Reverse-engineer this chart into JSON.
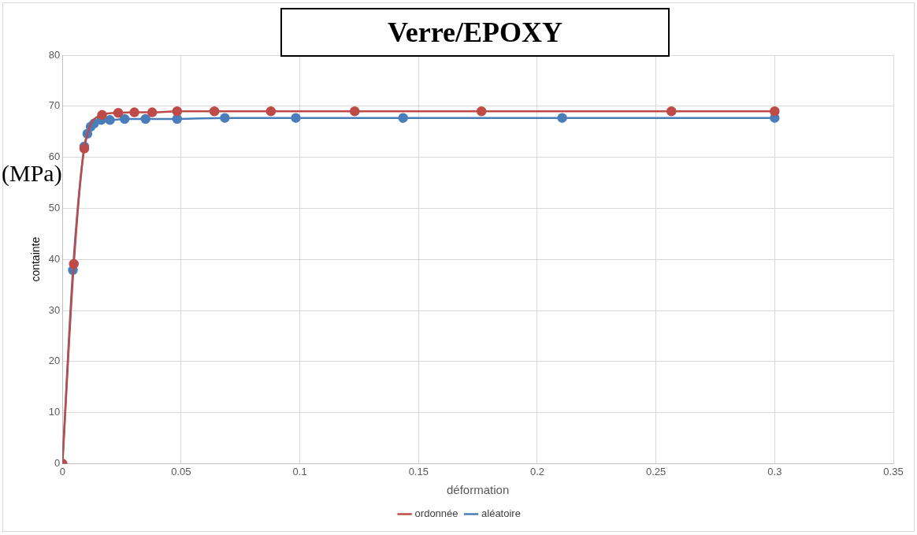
{
  "chart_data": {
    "type": "line",
    "title": "Verre/EPOXY",
    "xlabel": "déformation",
    "ylabel": "containte",
    "annotations": [
      "(MPa)"
    ],
    "xlim": [
      0,
      0.35
    ],
    "xticks": [
      0,
      0.05,
      0.1,
      0.15,
      0.2,
      0.25,
      0.3,
      0.35
    ],
    "ylim": [
      0,
      80
    ],
    "yticks": [
      0,
      10,
      20,
      30,
      40,
      50,
      60,
      70,
      80
    ],
    "grid": true,
    "legend": "bottom",
    "marker": "circle",
    "line_style": "solid",
    "series": [
      {
        "name": "ordonnée",
        "color": "#be4b48",
        "x": [
          0,
          0.0048,
          0.0092,
          0.0167,
          0.0235,
          0.0303,
          0.0378,
          0.0483,
          0.064,
          0.0878,
          0.1231,
          0.1765,
          0.2565,
          0.3
        ],
        "values": [
          0,
          39.1,
          61.7,
          68.3,
          68.7,
          68.8,
          68.8,
          69.0,
          69.0,
          69.0,
          69.0,
          69.0,
          69.0,
          69.0
        ]
      },
      {
        "name": "aléatoire",
        "color": "#4a7ebb",
        "x": [
          0,
          0.0044,
          0.0092,
          0.0105,
          0.0119,
          0.0133,
          0.0163,
          0.02,
          0.0262,
          0.035,
          0.0483,
          0.0684,
          0.0983,
          0.1435,
          0.2105,
          0.3
        ],
        "values": [
          0,
          37.9,
          62.1,
          64.6,
          66.0,
          66.6,
          67.3,
          67.3,
          67.5,
          67.5,
          67.5,
          67.7,
          67.7,
          67.7,
          67.7,
          67.7
        ]
      }
    ]
  }
}
